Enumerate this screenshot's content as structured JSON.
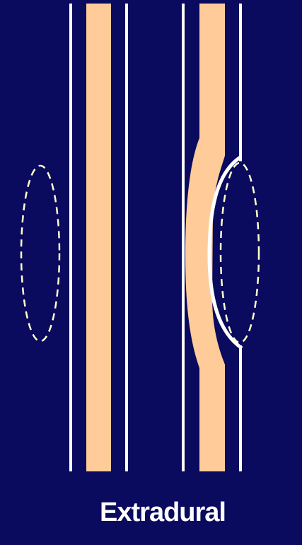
{
  "diagram": {
    "caption": "Extradural",
    "colors": {
      "background": "#0a0a5e",
      "cord": "#ffcc99",
      "line": "#ffffff",
      "dashed": "#ffffcc"
    }
  }
}
